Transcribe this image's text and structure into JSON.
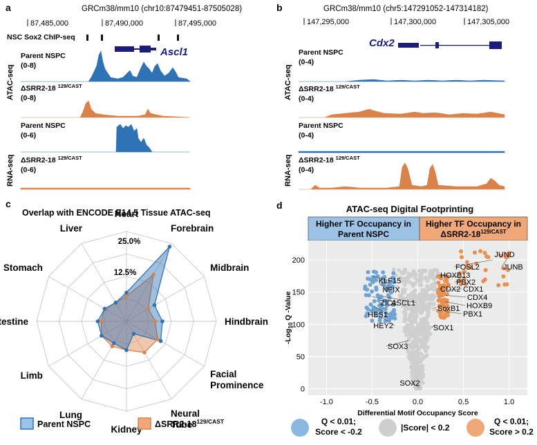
{
  "colors": {
    "blue": "#2f72b5",
    "orange": "#d9824a",
    "navy": "#1c1c7a",
    "blue_fill": "#9cc3e6",
    "orange_fill": "#f0a878",
    "gray_pt": "#cfcfcf"
  },
  "panel_a": {
    "letter": "a",
    "coords": "GRCm38/mm10 (chr10:87479451-87505028)",
    "ticks": [
      "87,485,000",
      "87,490,000",
      "87,495,000"
    ],
    "chip_label": "NSC Sox2 ChIP-seq",
    "gene": "Ascl1",
    "atac_side": "ATAC-seq",
    "rna_side": "RNA-seq",
    "t1_label": "Parent NSPC",
    "t1_range": "(0-8)",
    "t2_label_main": "ΔSRR2-18 ",
    "t2_label_sup": "129/CAST",
    "t2_range": "(0-8)",
    "t3_label": "Parent NSPC",
    "t3_range": "(0-6)",
    "t4_label_main": "ΔSRR2-18 ",
    "t4_label_sup": "129/CAST",
    "t4_range": "(0-6)"
  },
  "panel_b": {
    "letter": "b",
    "coords": "GRCm38/mm10 (chr5:147291052-147314182)",
    "ticks": [
      "147,295,000",
      "147,300,000",
      "147,305,000"
    ],
    "gene": "Cdx2",
    "atac_side": "ATAC-seq",
    "rna_side": "RNA-seq",
    "t1_label": "Parent NSPC",
    "t1_range": "(0-4)",
    "t2_label_main": "ΔSRR2-18 ",
    "t2_label_sup": "129/CAST",
    "t2_range": "(0-4)",
    "t3_label": "Parent NSPC",
    "t3_range": "(0-4)",
    "t4_label_main": "ΔSRR2-18 ",
    "t4_label_sup": "129/CAST",
    "t4_range": "(0-4)"
  },
  "panel_c": {
    "letter": "c",
    "title": "Overlap with ENCODE E14.5 Tissue ATAC-seq",
    "ring_labels": [
      "25.0%",
      "12.5%"
    ],
    "legend_parent": "Parent NSPC",
    "legend_mut_main": "ΔSRR2-18",
    "legend_mut_sup": "129/CAST"
  },
  "panel_d": {
    "letter": "d",
    "title": "ATAC-seq Digital Footprinting",
    "box_left_1": "Higher TF Occupancy in",
    "box_left_2": "Parent NSPC",
    "box_right_1": "Higher TF Occupancy in",
    "box_right_2_main": "ΔSRR2-18",
    "box_right_2_sup": "129/CAST",
    "ylabel_pre": "-Log",
    "ylabel_sub": "10",
    "ylabel_post": " Q -Value",
    "legend_blue_1": "Q < 0.01;",
    "legend_blue_2": "Score < -0.2",
    "legend_gray": "|Score| < 0.2",
    "legend_orange_1": "Q < 0.01;",
    "legend_orange_2": "Score > 0.2"
  },
  "chart_data": [
    {
      "type": "radar",
      "title": "Overlap with ENCODE E14.5 Tissue ATAC-seq",
      "categories": [
        "Heart",
        "Forebrain",
        "Midbrain",
        "Hindbrain",
        "Facial Prominence",
        "Neural Tube",
        "Kidney",
        "Lung",
        "Limb",
        "Intestine",
        "Stomach",
        "Liver"
      ],
      "rmax": 25.0,
      "rings": [
        12.5,
        25.0
      ],
      "series": [
        {
          "name": "Parent NSPC",
          "values": [
            8,
            24,
            9,
            10,
            11,
            4,
            8,
            7,
            8,
            8,
            7,
            6
          ]
        },
        {
          "name": "ΔSRR2-18 129/CAST",
          "values": [
            7,
            15,
            7,
            8,
            10,
            10,
            8,
            8,
            8,
            7,
            7,
            6
          ]
        }
      ]
    },
    {
      "type": "scatter",
      "title": "ATAC-seq Digital Footprinting",
      "xlabel": "Differential Motif Occupancy Score",
      "ylabel": "-Log10 Q -Value",
      "xlim": [
        -1.2,
        1.2
      ],
      "ylim": [
        -10,
        230
      ],
      "xticks": [
        -1.0,
        -0.5,
        0.0,
        0.5,
        1.0
      ],
      "yticks": [
        0,
        50,
        100,
        150,
        200
      ],
      "labeled_points": [
        {
          "label": "JUND",
          "x": 0.97,
          "y": 211
        },
        {
          "label": "FOSL2",
          "x": 0.82,
          "y": 200
        },
        {
          "label": "JUNB",
          "x": 0.98,
          "y": 202
        },
        {
          "label": "HOXB13",
          "x": 0.5,
          "y": 173
        },
        {
          "label": "PBX2",
          "x": 0.5,
          "y": 167
        },
        {
          "label": "CDX2",
          "x": 0.27,
          "y": 155
        },
        {
          "label": "CDX1",
          "x": 0.32,
          "y": 153
        },
        {
          "label": "CDX4",
          "x": 0.3,
          "y": 145
        },
        {
          "label": "HOXB9",
          "x": 0.3,
          "y": 135
        },
        {
          "label": "SoxB1",
          "x": 0.2,
          "y": 127
        },
        {
          "label": "PBX1",
          "x": 0.3,
          "y": 120
        },
        {
          "label": "SOX1",
          "x": 0.19,
          "y": 100
        },
        {
          "label": "SOX3",
          "x": -0.1,
          "y": 75
        },
        {
          "label": "SOX2",
          "x": 0.02,
          "y": 2
        },
        {
          "label": "KLF15",
          "x": -0.52,
          "y": 175
        },
        {
          "label": "NFIX",
          "x": -0.42,
          "y": 162
        },
        {
          "label": "ZIC1",
          "x": -0.5,
          "y": 143
        },
        {
          "label": "ASCL1",
          "x": -0.38,
          "y": 143
        },
        {
          "label": "HES1",
          "x": -0.48,
          "y": 128
        },
        {
          "label": "HEY2",
          "x": -0.42,
          "y": 113
        }
      ]
    }
  ]
}
